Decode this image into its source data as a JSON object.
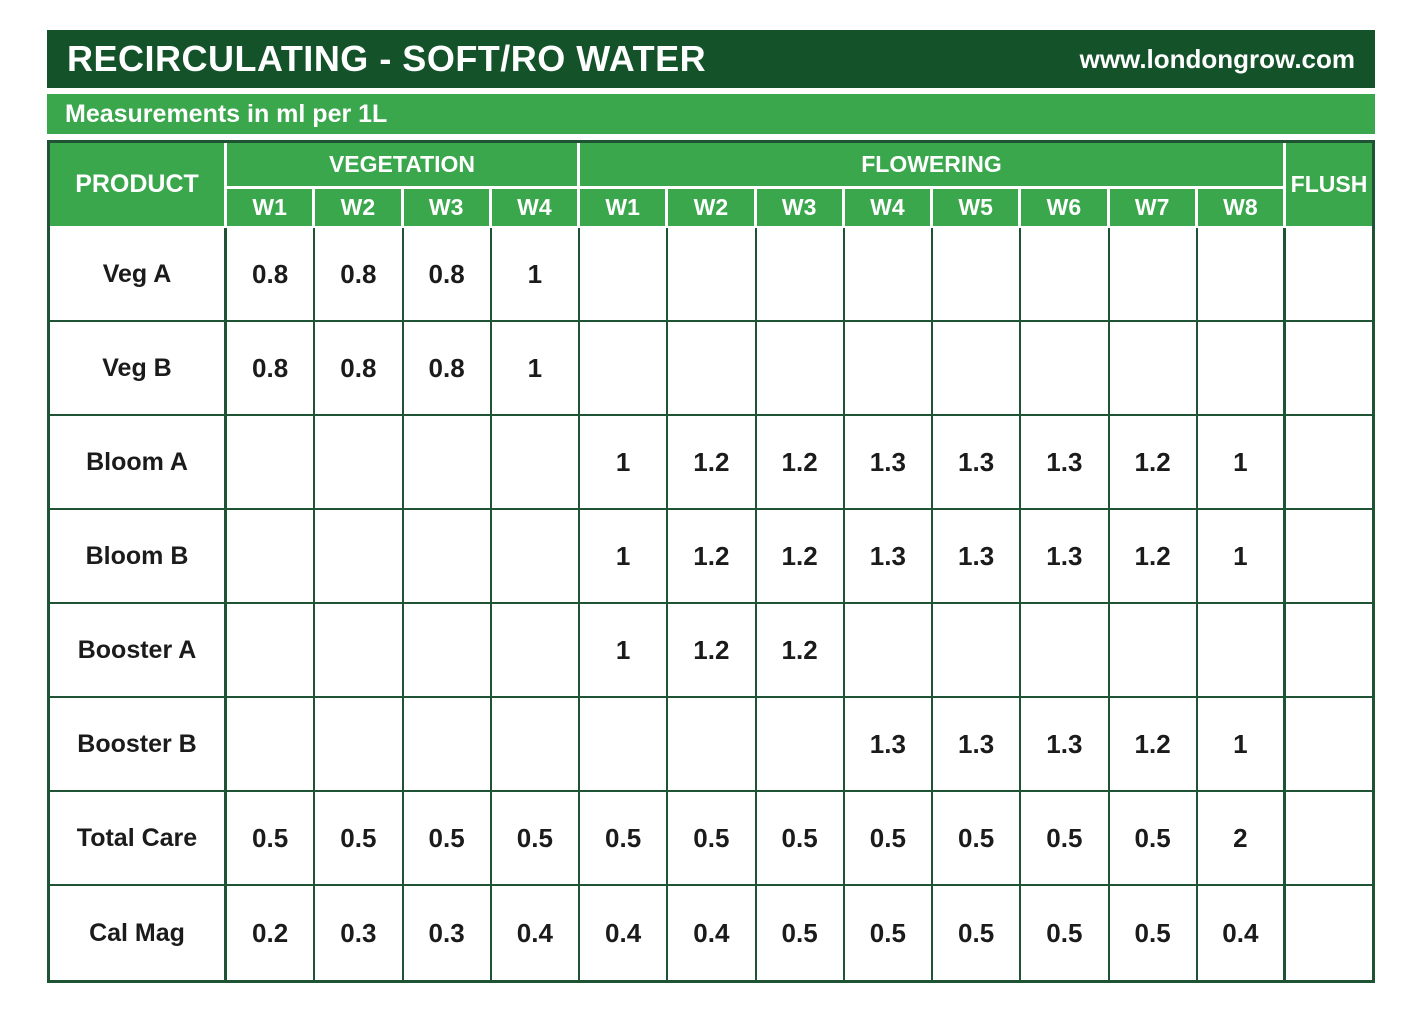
{
  "header": {
    "title": "RECIRCULATING - SOFT/RO WATER",
    "website": "www.londongrow.com"
  },
  "subheader": {
    "text": "Measurements in ml per 1L"
  },
  "table": {
    "product_header": "PRODUCT",
    "flush_header": "FLUSH",
    "groups": [
      {
        "label": "VEGETATION",
        "weeks": [
          "W1",
          "W2",
          "W3",
          "W4"
        ]
      },
      {
        "label": "FLOWERING",
        "weeks": [
          "W1",
          "W2",
          "W3",
          "W4",
          "W5",
          "W6",
          "W7",
          "W8"
        ]
      }
    ],
    "rows": [
      {
        "product": "Veg A",
        "values": [
          "0.8",
          "0.8",
          "0.8",
          "1",
          "",
          "",
          "",
          "",
          "",
          "",
          "",
          ""
        ],
        "flush": ""
      },
      {
        "product": "Veg B",
        "values": [
          "0.8",
          "0.8",
          "0.8",
          "1",
          "",
          "",
          "",
          "",
          "",
          "",
          "",
          ""
        ],
        "flush": ""
      },
      {
        "product": "Bloom A",
        "values": [
          "",
          "",
          "",
          "",
          "1",
          "1.2",
          "1.2",
          "1.3",
          "1.3",
          "1.3",
          "1.2",
          "1"
        ],
        "flush": ""
      },
      {
        "product": "Bloom B",
        "values": [
          "",
          "",
          "",
          "",
          "1",
          "1.2",
          "1.2",
          "1.3",
          "1.3",
          "1.3",
          "1.2",
          "1"
        ],
        "flush": ""
      },
      {
        "product": "Booster A",
        "values": [
          "",
          "",
          "",
          "",
          "1",
          "1.2",
          "1.2",
          "",
          "",
          "",
          "",
          ""
        ],
        "flush": ""
      },
      {
        "product": "Booster B",
        "values": [
          "",
          "",
          "",
          "",
          "",
          "",
          "",
          "1.3",
          "1.3",
          "1.3",
          "1.2",
          "1"
        ],
        "flush": ""
      },
      {
        "product": "Total Care",
        "values": [
          "0.5",
          "0.5",
          "0.5",
          "0.5",
          "0.5",
          "0.5",
          "0.5",
          "0.5",
          "0.5",
          "0.5",
          "0.5",
          "2"
        ],
        "flush": ""
      },
      {
        "product": "Cal Mag",
        "values": [
          "0.2",
          "0.3",
          "0.3",
          "0.4",
          "0.4",
          "0.4",
          "0.5",
          "0.5",
          "0.5",
          "0.5",
          "0.5",
          "0.4"
        ],
        "flush": ""
      }
    ]
  },
  "colors": {
    "dark_green": "#14522a",
    "medium_green": "#3aa74d",
    "border_green": "#1e5434"
  }
}
